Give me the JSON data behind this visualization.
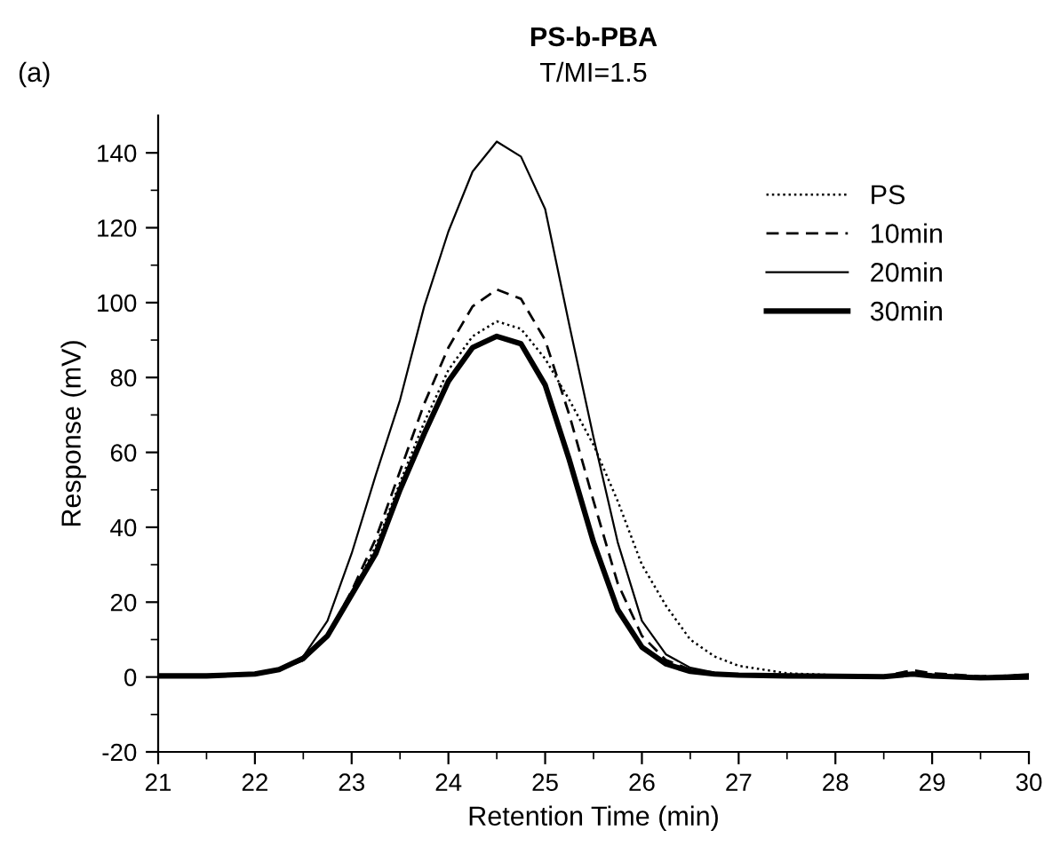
{
  "chart_data": {
    "type": "line",
    "title": "PS-b-PBA",
    "subtitle": "T/MI=1.5",
    "xlabel": "Retention Time (min)",
    "ylabel": "Response (mV)",
    "annotations": [
      "(a)"
    ],
    "xlim": [
      21,
      30
    ],
    "xticks": [
      21,
      22,
      23,
      24,
      25,
      26,
      27,
      28,
      29,
      30
    ],
    "ylim": [
      -20,
      150
    ],
    "yticks": [
      -20,
      0,
      20,
      40,
      60,
      80,
      100,
      120,
      140
    ],
    "grid": false,
    "legend": "top right",
    "marker": "none",
    "x": [
      21,
      21.5,
      22,
      22.25,
      22.5,
      22.75,
      23,
      23.25,
      23.5,
      23.75,
      24,
      24.25,
      24.5,
      24.75,
      25,
      25.25,
      25.5,
      25.75,
      26,
      26.25,
      26.5,
      26.75,
      27,
      27.5,
      28,
      28.5,
      28.8,
      29,
      29.5,
      30
    ],
    "series": [
      {
        "name": "PS",
        "color": "#000000",
        "line_style": "dotted",
        "values": [
          0.3,
          0.3,
          0.8,
          2,
          4.5,
          11,
          22,
          35,
          52,
          68,
          82,
          91,
          95,
          93,
          85,
          74,
          62,
          47,
          30,
          19,
          10,
          5.5,
          3,
          1,
          0.5,
          0.3,
          1,
          0.5,
          0,
          0.3
        ]
      },
      {
        "name": "10min",
        "color": "#000000",
        "line_style": "dashed",
        "values": [
          0.3,
          0.3,
          0.9,
          2,
          4.5,
          11,
          23,
          37,
          55,
          73,
          88,
          99,
          103.5,
          101,
          90,
          70,
          47,
          25,
          11,
          4.5,
          2,
          1,
          0.6,
          0.3,
          0.3,
          0.3,
          1.8,
          1,
          0.2,
          0.5
        ]
      },
      {
        "name": "20min",
        "color": "#000000",
        "line_style": "solid",
        "values": [
          0.4,
          0.4,
          1,
          2,
          5.5,
          15,
          33,
          54,
          74,
          99,
          119,
          135,
          143,
          139,
          125,
          94,
          64,
          36,
          15,
          6,
          2.5,
          1.2,
          0.6,
          0.3,
          0.3,
          0.2,
          1,
          0.5,
          0,
          0.8
        ]
      },
      {
        "name": "30min",
        "color": "#000000",
        "line_style": "solid",
        "values": [
          0.3,
          0.3,
          0.8,
          2,
          5,
          11,
          22,
          33,
          50,
          65,
          79,
          88,
          91,
          89,
          78,
          58,
          36,
          18,
          8,
          3.5,
          1.5,
          0.8,
          0.5,
          0.3,
          0.2,
          0.1,
          0.8,
          0.3,
          -0.2,
          0
        ]
      }
    ]
  }
}
